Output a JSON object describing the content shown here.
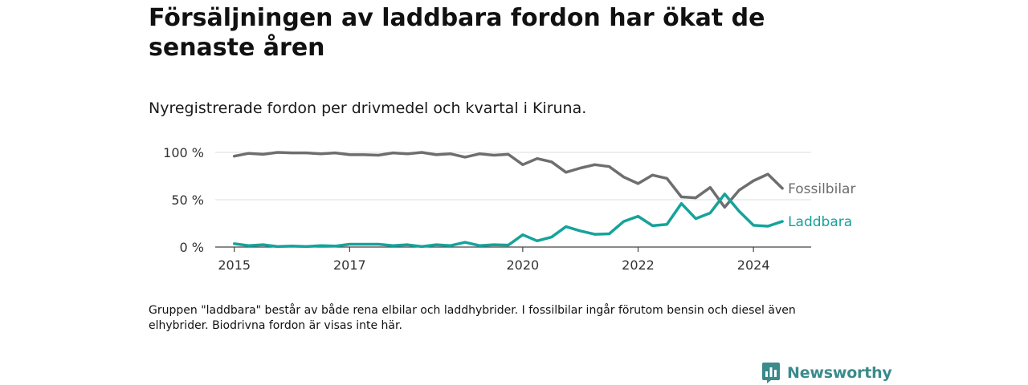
{
  "header": {
    "title": "Försäljningen av laddbara fordon har ökat de senaste åren",
    "subtitle": "Nyregistrerade fordon per drivmedel och kvartal i Kiruna."
  },
  "footer": {
    "note": "Gruppen \"laddbara\" består av både rena elbilar och laddhybrider. I fossilbilar ingår förutom bensin och diesel även elhybrider. Biodrivna fordon är visas inte här.",
    "brand": "Newsworthy"
  },
  "chart_data": {
    "type": "line",
    "title": "Försäljningen av laddbara fordon har ökat de senaste åren",
    "subtitle": "Nyregistrerade fordon per drivmedel och kvartal i Kiruna.",
    "xlabel": "",
    "ylabel": "",
    "x_start": 2015.0,
    "x_step": 0.25,
    "x_ticks": [
      {
        "value": 2015,
        "label": "2015"
      },
      {
        "value": 2017,
        "label": "2017"
      },
      {
        "value": 2020,
        "label": "2020"
      },
      {
        "value": 2022,
        "label": "2022"
      },
      {
        "value": 2024,
        "label": "2024"
      }
    ],
    "y_ticks": [
      {
        "value": 0,
        "label": "0 %"
      },
      {
        "value": 50,
        "label": "50 %"
      },
      {
        "value": 100,
        "label": "100 %"
      }
    ],
    "ylim": [
      0,
      100
    ],
    "xlim": [
      2014.67,
      2025.0
    ],
    "grid": true,
    "series": [
      {
        "name": "Fossilbilar",
        "color": "#6e6e6e",
        "values": [
          96,
          99,
          98,
          100,
          99.5,
          99.5,
          98.5,
          99.5,
          97.5,
          97.5,
          97,
          99.5,
          98.5,
          100,
          97.5,
          98.5,
          95,
          98.5,
          97,
          98,
          87,
          93.5,
          90,
          79,
          83.5,
          87,
          85,
          74,
          67,
          76,
          72.5,
          53,
          52,
          63,
          42,
          60,
          70,
          77,
          62
        ]
      },
      {
        "name": "Laddbara",
        "color": "#15a39a",
        "values": [
          3.5,
          1.5,
          2.5,
          0.5,
          1,
          0.5,
          1.5,
          1,
          3,
          3,
          3,
          1.5,
          2.5,
          0.5,
          2.5,
          1.5,
          5,
          1.5,
          2.5,
          2,
          13,
          6.5,
          10.5,
          21.5,
          17,
          13.5,
          14,
          27,
          32.5,
          22.5,
          24,
          46,
          30,
          36,
          56,
          38,
          23,
          22,
          27
        ]
      }
    ]
  }
}
